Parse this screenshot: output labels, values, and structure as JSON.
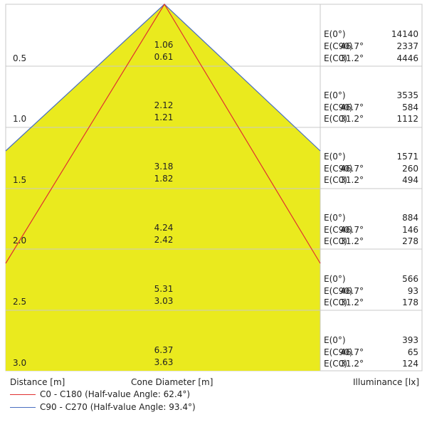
{
  "rows": [
    {
      "distance": "0.5",
      "c90_diameter": "1.06",
      "c0_diameter": "0.61",
      "e0_label": "E(0°)",
      "e0": "14140",
      "ec90_label": "E(C90)",
      "ec90_angle": "46.7°",
      "ec90": "2337",
      "ec0_label": "E(C0)",
      "ec0_angle": "31.2°",
      "ec0": "4446"
    },
    {
      "distance": "1.0",
      "c90_diameter": "2.12",
      "c0_diameter": "1.21",
      "e0_label": "E(0°)",
      "e0": "3535",
      "ec90_label": "E(C90)",
      "ec90_angle": "46.7°",
      "ec90": "584",
      "ec0_label": "E(C0)",
      "ec0_angle": "31.2°",
      "ec0": "1112"
    },
    {
      "distance": "1.5",
      "c90_diameter": "3.18",
      "c0_diameter": "1.82",
      "e0_label": "E(0°)",
      "e0": "1571",
      "ec90_label": "E(C90)",
      "ec90_angle": "46.7°",
      "ec90": "260",
      "ec0_label": "E(C0)",
      "ec0_angle": "31.2°",
      "ec0": "494"
    },
    {
      "distance": "2.0",
      "c90_diameter": "4.24",
      "c0_diameter": "2.42",
      "e0_label": "E(0°)",
      "e0": "884",
      "ec90_label": "E(C90)",
      "ec90_angle": "46.7°",
      "ec90": "146",
      "ec0_label": "E(C0)",
      "ec0_angle": "31.2°",
      "ec0": "278"
    },
    {
      "distance": "2.5",
      "c90_diameter": "5.31",
      "c0_diameter": "3.03",
      "e0_label": "E(0°)",
      "e0": "566",
      "ec90_label": "E(C90)",
      "ec90_angle": "46.7°",
      "ec90": "93",
      "ec0_label": "E(C0)",
      "ec0_angle": "31.2°",
      "ec0": "178"
    },
    {
      "distance": "3.0",
      "c90_diameter": "6.37",
      "c0_diameter": "3.63",
      "e0_label": "E(0°)",
      "e0": "393",
      "ec90_label": "E(C90)",
      "ec90_angle": "46.7°",
      "ec90": "65",
      "ec0_label": "E(C0)",
      "ec0_angle": "31.2°",
      "ec0": "124"
    }
  ],
  "labels": {
    "distance": "Distance [m]",
    "cone_diameter": "Cone Diameter [m]",
    "illuminance": "Illuminance [lx]"
  },
  "legend": [
    {
      "text": "C0 - C180 (Half-value Angle: 62.4°)",
      "color": "#e03030"
    },
    {
      "text": "C90 - C270 (Half-value Angle: 93.4°)",
      "color": "#4a6fc0"
    }
  ],
  "colors": {
    "cone_fill": "#eaea1e",
    "grid": "#c8c8c8"
  }
}
